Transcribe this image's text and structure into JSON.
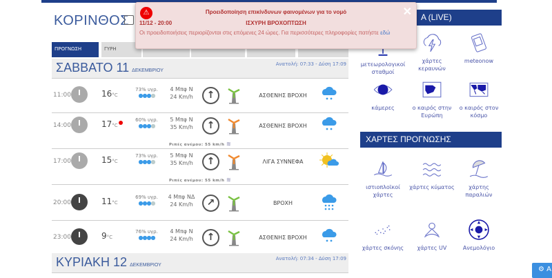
{
  "location": "ΚΟΡΙΝΘΟΣ",
  "tabs": [
    {
      "label": "ΠΡΟΓΝΩΣΗ",
      "active": true
    },
    {
      "label": "ΓΥΡΗ"
    },
    {
      "label": ""
    },
    {
      "label": ""
    },
    {
      "label": ""
    },
    {
      "label": ""
    }
  ],
  "days": [
    {
      "name": "ΣΑΒΒΑΤΟ 11",
      "month": "ΔΕΚΕΜΒΡΙΟΥ",
      "sun": "Ανατολή: 07:33 - Δύση 17:09"
    },
    {
      "name": "ΚΥΡΙΑΚΗ 12",
      "month": "ΔΕΚΕΜΒΡΙΟΥ",
      "sun": "Ανατολή: 07:34 - Δύση 17:09"
    }
  ],
  "rows": [
    {
      "time": "11:00",
      "temp": "16",
      "unit": "°C",
      "hum": "73% υγρ.",
      "drops": 3,
      "bft": "4 Μπφ N",
      "kmh": "24 Km/h",
      "dir": "N",
      "desc": "ΑΣΘΕΝΗΣ ΒΡΟΧΗ",
      "icon": "light-rain",
      "turbine": "#7ac143"
    },
    {
      "time": "14:00",
      "temp": "17",
      "unit": "°C",
      "hum": "60% υγρ.",
      "drops": 3,
      "bft": "5 Μπφ N",
      "kmh": "35 Km/h",
      "dir": "N",
      "desc": "ΑΣΘΕΝΗΣ ΒΡΟΧΗ",
      "icon": "light-rain",
      "turbine": "#f08a30",
      "gust": "Ριπές ανέμου: 55 km/h",
      "alert_dot": true
    },
    {
      "time": "17:00",
      "temp": "15",
      "unit": "°C",
      "hum": "73% υγρ.",
      "drops": 3,
      "bft": "5 Μπφ N",
      "kmh": "35 Km/h",
      "dir": "N",
      "desc": "ΛΙΓΑ ΣΥΝΝΕΦΑ",
      "icon": "partly-cloudy",
      "turbine": "#f08a30",
      "gust": "Ριπές ανέμου: 55 km/h"
    },
    {
      "time": "20:00",
      "temp": "11",
      "unit": "°C",
      "hum": "69% υγρ.",
      "drops": 3,
      "bft": "4 Μπφ ΝΔ",
      "kmh": "24 Km/h",
      "dir": "SW",
      "desc": "ΒΡΟΧΗ",
      "icon": "rain",
      "turbine": "#7ac143",
      "night": true
    },
    {
      "time": "23:00",
      "temp": "9",
      "unit": "°C",
      "hum": "76% υγρ.",
      "drops": 4,
      "bft": "4 Μπφ N",
      "kmh": "24 Km/h",
      "dir": "N",
      "desc": "ΑΣΘΕΝΗΣ ΒΡΟΧΗ",
      "icon": "light-rain",
      "turbine": "#7ac143",
      "night": true
    }
  ],
  "alert": {
    "title": "Προειδοποίηση επικίνδυνων φαινομένων για το νομό",
    "datetime": "11/12 - 20:00",
    "phenomenon": "ΙΣΧΥΡΗ ΒΡΟΧΟΠΤΩΣΗ",
    "text": "Οι προειδοποιήσεις περιορίζονται στις επόμενες 24 ώρες. Για περισσότερες πληροφορίες πατήστε",
    "link": "εδώ",
    "close": "✕"
  },
  "live": {
    "title": "Α (LIVE)",
    "items": [
      {
        "label": "μετεωρολογικοί σταθμοί",
        "icon": "station-icon"
      },
      {
        "label": "χάρτες κεραυνών",
        "icon": "lightning-icon"
      },
      {
        "label": "meteonow",
        "icon": "phone-icon"
      },
      {
        "label": "κάμερες",
        "icon": "eye-icon"
      },
      {
        "label": "ο καιρός στην Ευρώπη",
        "icon": "europe-map-icon"
      },
      {
        "label": "ο καιρός στον κόσμο",
        "icon": "world-map-icon"
      }
    ]
  },
  "maps": {
    "title": "ΧΑΡΤΕΣ ΠΡΟΓΝΩΣΗΣ",
    "items": [
      {
        "label": "ιστιοπλοϊκοί χάρτες",
        "icon": "sailboat-icon"
      },
      {
        "label": "χάρτες κύματος",
        "icon": "waves-icon"
      },
      {
        "label": "χάρτης παραλιών",
        "icon": "umbrella-icon"
      },
      {
        "label": "χάρτες σκόνης",
        "icon": "dust-icon"
      },
      {
        "label": "χάρτες UV",
        "icon": "uv-icon"
      },
      {
        "label": "Ανεμολόγιο",
        "icon": "compass-icon"
      }
    ]
  },
  "corner_button": "A",
  "colors": {
    "brand": "#1e3f8a",
    "alert_bg": "#f2dede",
    "rain": "#3b9be8"
  }
}
